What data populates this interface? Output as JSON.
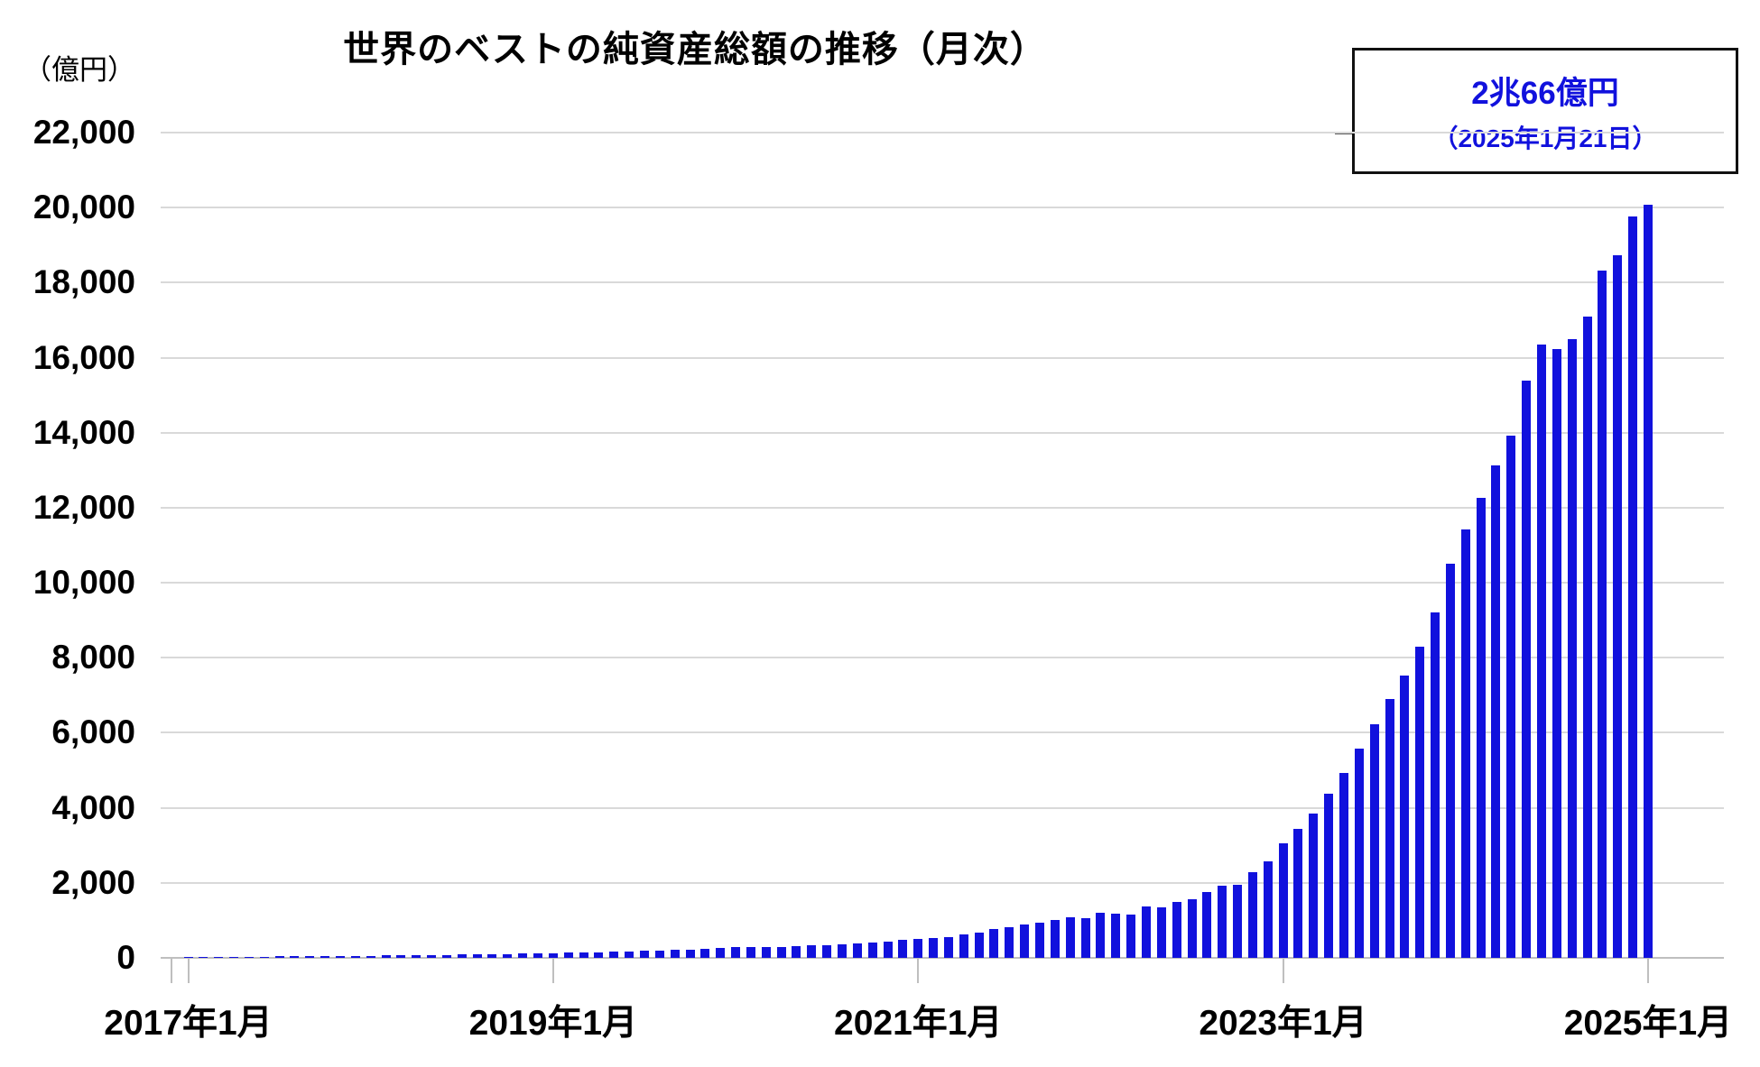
{
  "title": "世界のベストの純資産総額の推移（月次）",
  "unit_label": "（億円）",
  "annotation": {
    "line1": "2兆66億円",
    "line2": "（2025年1月21日）"
  },
  "colors": {
    "bar": "#1111dd",
    "annotation_text": "#1111dd",
    "gridline": "#d9d9d9",
    "axis": "#bfbfbf",
    "tick": "#bfbfbf",
    "text": "#000000"
  },
  "y_axis": {
    "min": 0,
    "max": 22000,
    "step": 2000,
    "tick_labels": [
      "0",
      "2,000",
      "4,000",
      "6,000",
      "8,000",
      "10,000",
      "12,000",
      "14,000",
      "16,000",
      "18,000",
      "20,000",
      "22,000"
    ],
    "grid": true
  },
  "x_axis": {
    "tick_labels": [
      "2017年1月",
      "2019年1月",
      "2021年1月",
      "2023年1月",
      "2025年1月"
    ],
    "tick_every_months": 24
  },
  "chart_data": {
    "type": "bar",
    "title": "世界のベストの純資産総額の推移（月次）",
    "ylabel": "（億円）",
    "ylim": [
      0,
      22000
    ],
    "legend": "none",
    "x": [
      "2017-01",
      "2017-02",
      "2017-03",
      "2017-04",
      "2017-05",
      "2017-06",
      "2017-07",
      "2017-08",
      "2017-09",
      "2017-10",
      "2017-11",
      "2017-12",
      "2018-01",
      "2018-02",
      "2018-03",
      "2018-04",
      "2018-05",
      "2018-06",
      "2018-07",
      "2018-08",
      "2018-09",
      "2018-10",
      "2018-11",
      "2018-12",
      "2019-01",
      "2019-02",
      "2019-03",
      "2019-04",
      "2019-05",
      "2019-06",
      "2019-07",
      "2019-08",
      "2019-09",
      "2019-10",
      "2019-11",
      "2019-12",
      "2020-01",
      "2020-02",
      "2020-03",
      "2020-04",
      "2020-05",
      "2020-06",
      "2020-07",
      "2020-08",
      "2020-09",
      "2020-10",
      "2020-11",
      "2020-12",
      "2021-01",
      "2021-02",
      "2021-03",
      "2021-04",
      "2021-05",
      "2021-06",
      "2021-07",
      "2021-08",
      "2021-09",
      "2021-10",
      "2021-11",
      "2021-12",
      "2022-01",
      "2022-02",
      "2022-03",
      "2022-04",
      "2022-05",
      "2022-06",
      "2022-07",
      "2022-08",
      "2022-09",
      "2022-10",
      "2022-11",
      "2022-12",
      "2023-01",
      "2023-02",
      "2023-03",
      "2023-04",
      "2023-05",
      "2023-06",
      "2023-07",
      "2023-08",
      "2023-09",
      "2023-10",
      "2023-11",
      "2023-12",
      "2024-01",
      "2024-02",
      "2024-03",
      "2024-04",
      "2024-05",
      "2024-06",
      "2024-07",
      "2024-08",
      "2024-09",
      "2024-10",
      "2024-11",
      "2024-12",
      "2025-01"
    ],
    "values": [
      25,
      27,
      29,
      31,
      33,
      35,
      38,
      41,
      44,
      47,
      50,
      54,
      58,
      62,
      66,
      70,
      75,
      80,
      85,
      90,
      96,
      103,
      110,
      118,
      127,
      136,
      146,
      156,
      166,
      176,
      187,
      198,
      210,
      224,
      240,
      258,
      278,
      295,
      280,
      292,
      308,
      325,
      344,
      365,
      388,
      412,
      440,
      470,
      500,
      530,
      560,
      625,
      680,
      760,
      820,
      900,
      945,
      1000,
      1080,
      1060,
      1200,
      1185,
      1160,
      1360,
      1345,
      1480,
      1560,
      1760,
      1920,
      1940,
      2280,
      2565,
      3050,
      3430,
      3840,
      4380,
      4940,
      5580,
      6230,
      6890,
      7530,
      8300,
      9200,
      10500,
      11420,
      12260,
      13120,
      13920,
      15385,
      16345,
      16225,
      16490,
      17105,
      18330,
      18730,
      19770,
      20066
    ],
    "last_point_label": "2兆66億円（2025年1月21日）"
  }
}
